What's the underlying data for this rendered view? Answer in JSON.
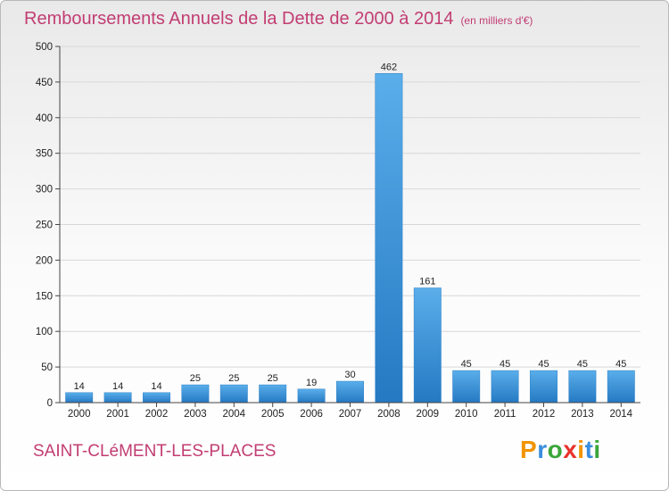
{
  "title": "Remboursements Annuels de la Dette de 2000 à 2014",
  "title_unit": "(en milliers d'€)",
  "place": "SAINT-CLéMENT-LES-PLACES",
  "brand": {
    "letters": [
      "P",
      "r",
      "o",
      "x",
      "i",
      "t",
      "i"
    ],
    "colors": [
      "#f29400",
      "#3a8dde",
      "#3aa63a",
      "#e8322b",
      "#f29400",
      "#3a8dde",
      "#3aa63a"
    ]
  },
  "colors": {
    "bar": "#3c98de",
    "bar_dark": "#1f6fb5",
    "title": "#c23d72",
    "grid": "#d8d8d8"
  },
  "chart_data": {
    "type": "bar",
    "title": "Remboursements Annuels de la Dette de 2000 à 2014",
    "categories": [
      "2000",
      "2001",
      "2002",
      "2003",
      "2004",
      "2005",
      "2006",
      "2007",
      "2008",
      "2009",
      "2010",
      "2011",
      "2012",
      "2013",
      "2014"
    ],
    "values": [
      14,
      14,
      14,
      25,
      25,
      25,
      19,
      30,
      462,
      161,
      45,
      45,
      45,
      45,
      45
    ],
    "ylim": [
      0,
      500
    ],
    "yticks": [
      0,
      50,
      100,
      150,
      200,
      250,
      300,
      350,
      400,
      450,
      500
    ],
    "grid": "horizontal",
    "data_labels": true
  }
}
